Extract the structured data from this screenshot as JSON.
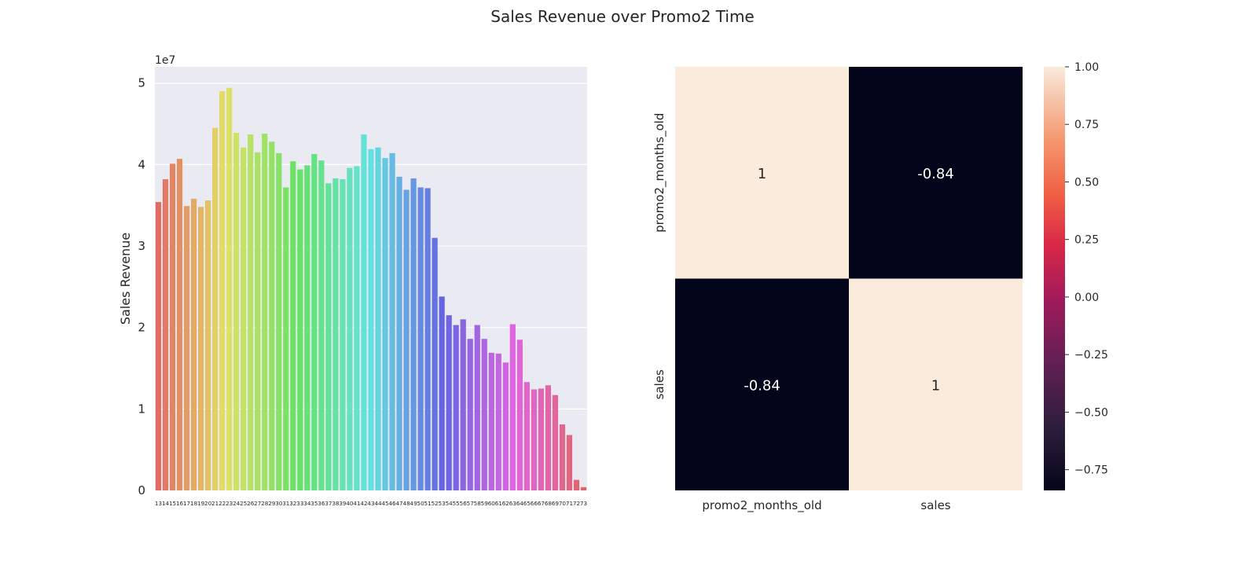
{
  "figure": {
    "title": "Sales Revenue over Promo2 Time"
  },
  "chart_data": [
    {
      "type": "bar",
      "title": "",
      "xlabel": "",
      "ylabel": "Sales Revenue",
      "y_offset_label": "1e7",
      "ylim": [
        0,
        52000000
      ],
      "yticks": [
        0,
        10000000,
        20000000,
        30000000,
        40000000,
        50000000
      ],
      "ytick_labels": [
        "0",
        "1",
        "2",
        "3",
        "4",
        "5"
      ],
      "grid": true,
      "categories": [
        "13",
        "14",
        "15",
        "16",
        "17",
        "18",
        "19",
        "20",
        "21",
        "22",
        "23",
        "24",
        "25",
        "26",
        "27",
        "28",
        "29",
        "30",
        "31",
        "32",
        "33",
        "34",
        "35",
        "36",
        "37",
        "38",
        "39",
        "40",
        "41",
        "42",
        "43",
        "44",
        "45",
        "46",
        "47",
        "48",
        "49",
        "50",
        "51",
        "52",
        "53",
        "54",
        "55",
        "56",
        "57",
        "58",
        "59",
        "60",
        "61",
        "62",
        "63",
        "64",
        "65",
        "66",
        "67",
        "68",
        "69",
        "70",
        "71",
        "72",
        "73"
      ],
      "values": [
        35400000,
        38200000,
        40100000,
        40700000,
        34900000,
        35800000,
        34800000,
        35600000,
        44500000,
        49000000,
        49400000,
        43900000,
        42100000,
        43700000,
        41500000,
        43800000,
        42800000,
        41400000,
        37200000,
        40400000,
        39400000,
        39900000,
        41300000,
        40500000,
        37700000,
        38300000,
        38200000,
        39600000,
        39800000,
        43700000,
        41900000,
        42100000,
        40800000,
        41400000,
        38500000,
        36900000,
        38300000,
        37200000,
        37100000,
        31000000,
        23800000,
        21500000,
        20300000,
        21000000,
        18600000,
        20300000,
        18600000,
        16900000,
        16800000,
        15700000,
        20400000,
        18500000,
        13300000,
        12400000,
        12500000,
        12900000,
        11700000,
        8100000,
        6800000,
        1300000,
        400000
      ],
      "palette": "husl"
    },
    {
      "type": "heatmap",
      "title": "",
      "row_labels": [
        "promo2_months_old",
        "sales"
      ],
      "col_labels": [
        "promo2_months_old",
        "sales"
      ],
      "values": [
        [
          1,
          -0.84
        ],
        [
          -0.84,
          1
        ]
      ],
      "annotations": [
        [
          "1",
          "-0.84"
        ],
        [
          "-0.84",
          "1"
        ]
      ],
      "colormap": "rocket",
      "colorbar": {
        "range": [
          -0.84,
          1.0
        ],
        "ticks": [
          1.0,
          0.75,
          0.5,
          0.25,
          0.0,
          -0.25,
          -0.5,
          -0.75
        ],
        "tick_labels": [
          "1.00",
          "0.75",
          "0.50",
          "0.25",
          "0.00",
          "−0.25",
          "−0.50",
          "−0.75"
        ]
      }
    }
  ]
}
